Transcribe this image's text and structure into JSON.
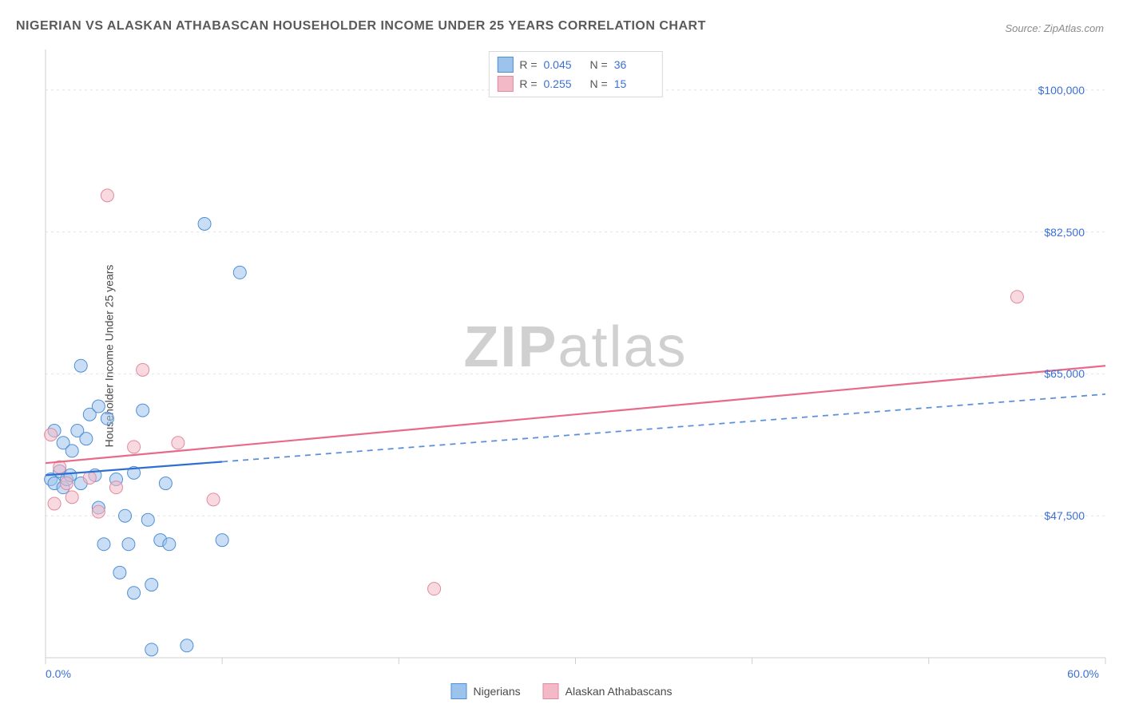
{
  "title": "NIGERIAN VS ALASKAN ATHABASCAN HOUSEHOLDER INCOME UNDER 25 YEARS CORRELATION CHART",
  "source_label": "Source: ZipAtlas.com",
  "ylabel": "Householder Income Under 25 years",
  "watermark_a": "ZIP",
  "watermark_b": "atlas",
  "chart": {
    "type": "scatter",
    "background_color": "#ffffff",
    "grid_color": "#e2e2e2",
    "axis_color": "#cfcfcf",
    "tick_color": "#cfcfcf",
    "xmin": 0.0,
    "xmax": 60.0,
    "ymin": 30000,
    "ymax": 105000,
    "x_axis_label_min": "0.0%",
    "x_axis_label_max": "60.0%",
    "y_ticks": [
      47500,
      65000,
      82500,
      100000
    ],
    "y_tick_labels": [
      "$47,500",
      "$65,000",
      "$82,500",
      "$100,000"
    ],
    "x_major_ticks": [
      0,
      10,
      20,
      30,
      40,
      50,
      60
    ],
    "marker_radius": 8,
    "marker_opacity": 0.55,
    "trend_line_width": 2.2,
    "axis_label_color": "#3b6fd6",
    "title_color": "#5a5a5a",
    "title_fontsize": 16,
    "label_fontsize": 14
  },
  "series": [
    {
      "name": "Nigerians",
      "fill": "#9cc3ec",
      "stroke": "#4f8fd6",
      "trend_color": "#2f6fd0",
      "trend_dash_color": "#5a8fd8",
      "R": "0.045",
      "N": "36",
      "trend": {
        "x1": 0,
        "y1": 52500,
        "x2": 60,
        "y2": 62500,
        "solid_until_x": 10
      },
      "points": [
        [
          0.3,
          52000
        ],
        [
          0.5,
          51500
        ],
        [
          0.5,
          58000
        ],
        [
          0.8,
          53000
        ],
        [
          1.0,
          56500
        ],
        [
          1.0,
          51000
        ],
        [
          1.2,
          52000
        ],
        [
          1.4,
          52500
        ],
        [
          1.5,
          55500
        ],
        [
          1.8,
          58000
        ],
        [
          2.0,
          66000
        ],
        [
          2.0,
          51500
        ],
        [
          2.3,
          57000
        ],
        [
          2.5,
          60000
        ],
        [
          2.8,
          52500
        ],
        [
          3.0,
          61000
        ],
        [
          3.0,
          48500
        ],
        [
          3.3,
          44000
        ],
        [
          3.5,
          59500
        ],
        [
          4.0,
          52000
        ],
        [
          4.2,
          40500
        ],
        [
          4.5,
          47500
        ],
        [
          4.7,
          44000
        ],
        [
          5.0,
          38000
        ],
        [
          5.0,
          52800
        ],
        [
          5.5,
          60500
        ],
        [
          5.8,
          47000
        ],
        [
          6.0,
          39000
        ],
        [
          6.5,
          44500
        ],
        [
          6.8,
          51500
        ],
        [
          7.0,
          44000
        ],
        [
          8.0,
          31500
        ],
        [
          9.0,
          83500
        ],
        [
          10.0,
          44500
        ],
        [
          11.0,
          77500
        ],
        [
          6.0,
          31000
        ]
      ]
    },
    {
      "name": "Alaskan Athabascans",
      "fill": "#f4b9c6",
      "stroke": "#e28a9f",
      "trend_color": "#e76b88",
      "R": "0.255",
      "N": "15",
      "trend": {
        "x1": 0,
        "y1": 54000,
        "x2": 60,
        "y2": 66000,
        "solid_until_x": 60
      },
      "points": [
        [
          0.3,
          57500
        ],
        [
          0.5,
          49000
        ],
        [
          0.8,
          53500
        ],
        [
          1.2,
          51500
        ],
        [
          1.5,
          49800
        ],
        [
          2.5,
          52200
        ],
        [
          3.0,
          48000
        ],
        [
          3.5,
          87000
        ],
        [
          4.0,
          51000
        ],
        [
          5.0,
          56000
        ],
        [
          5.5,
          65500
        ],
        [
          7.5,
          56500
        ],
        [
          9.5,
          49500
        ],
        [
          22.0,
          38500
        ],
        [
          55.0,
          74500
        ]
      ]
    }
  ],
  "legend_top": {
    "r_label": "R  =",
    "n_label": "N  ="
  },
  "legend_bottom": {
    "items": [
      "Nigerians",
      "Alaskan Athabascans"
    ]
  }
}
